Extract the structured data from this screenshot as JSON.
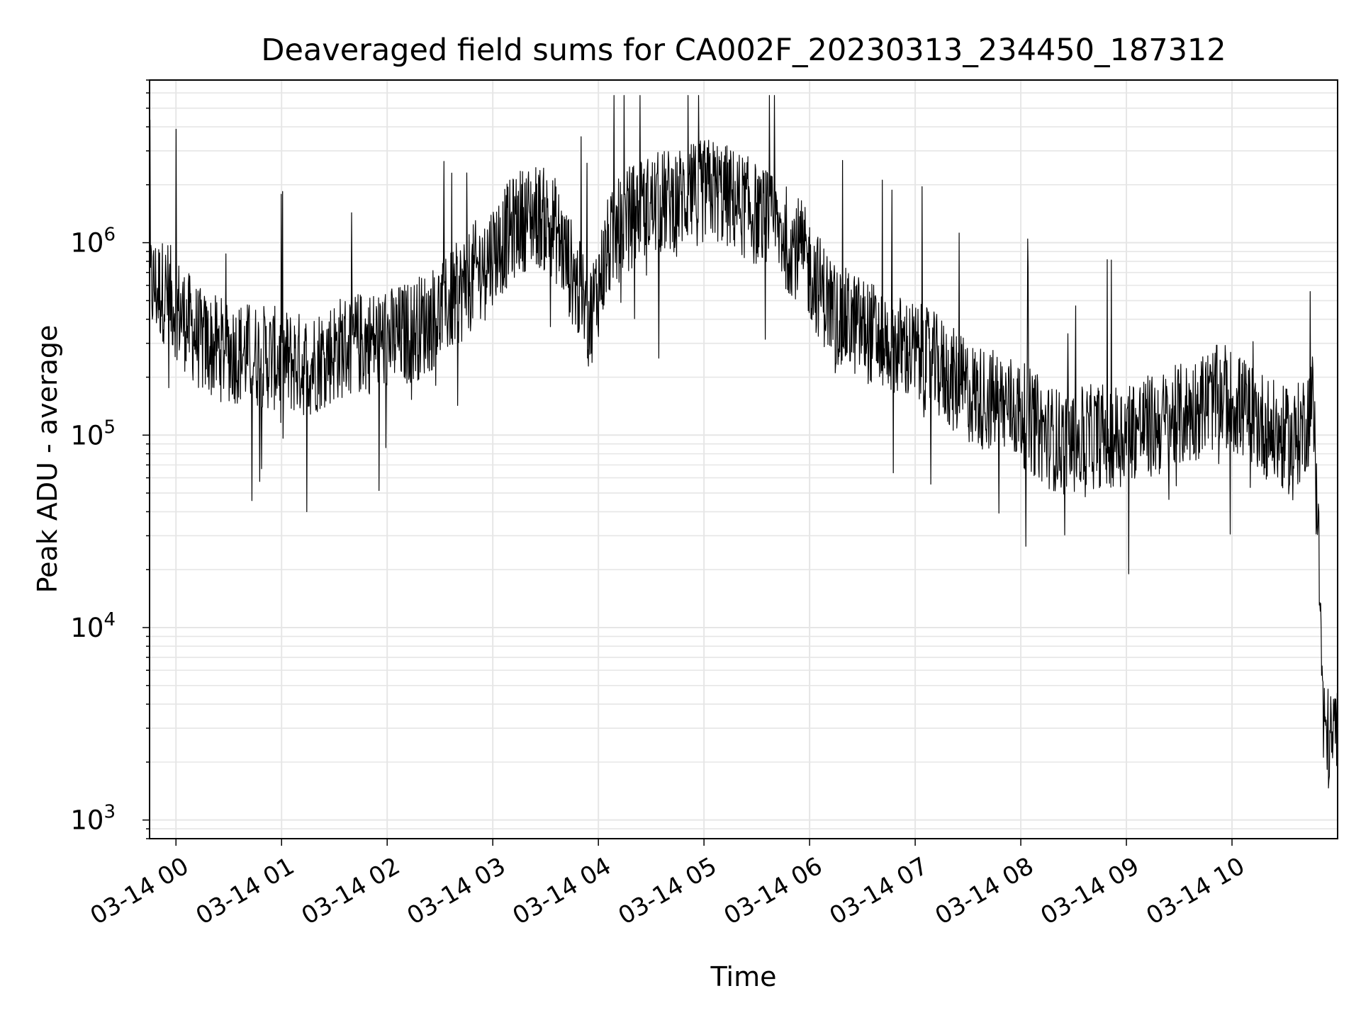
{
  "chart_data": {
    "type": "line",
    "title": "Deaveraged field sums for CA002F_20230313_234450_187312",
    "xlabel": "Time",
    "ylabel": "Peak ADU - average",
    "yscale": "log",
    "ylim": [
      800,
      7000000
    ],
    "xlim": [
      "2023-03-13 23:45",
      "2023-03-14 11:00"
    ],
    "x_ticks": [
      "2023-03-14 00:00",
      "2023-03-14 01:00",
      "2023-03-14 02:00",
      "2023-03-14 03:00",
      "2023-03-14 04:00",
      "2023-03-14 05:00",
      "2023-03-14 06:00",
      "2023-03-14 07:00",
      "2023-03-14 08:00",
      "2023-03-14 09:00",
      "2023-03-14 10:00"
    ],
    "x_tick_labels": [
      "03-14 00",
      "03-14 01",
      "03-14 02",
      "03-14 03",
      "03-14 04",
      "03-14 05",
      "03-14 06",
      "03-14 07",
      "03-14 08",
      "03-14 09",
      "03-14 10"
    ],
    "y_ticks": [
      1000,
      10000,
      100000,
      1000000
    ],
    "y_tick_labels": [
      {
        "base": "10",
        "exp": "3"
      },
      {
        "base": "10",
        "exp": "4"
      },
      {
        "base": "10",
        "exp": "5"
      },
      {
        "base": "10",
        "exp": "6"
      }
    ],
    "grid": true,
    "line_color": "#000000",
    "grid_color": "#e6e6e6",
    "series": [
      {
        "x": [
          "2023-03-13 23:45",
          "2023-03-13 23:55",
          "2023-03-14 00:05",
          "2023-03-14 00:15",
          "2023-03-14 00:25",
          "2023-03-14 00:35",
          "2023-03-14 00:45",
          "2023-03-14 00:55",
          "2023-03-14 01:05",
          "2023-03-14 01:15",
          "2023-03-14 01:25",
          "2023-03-14 01:35",
          "2023-03-14 01:45",
          "2023-03-14 01:55",
          "2023-03-14 02:05",
          "2023-03-14 02:15",
          "2023-03-14 02:25",
          "2023-03-14 02:35",
          "2023-03-14 02:45",
          "2023-03-14 02:55",
          "2023-03-14 03:05",
          "2023-03-14 03:15",
          "2023-03-14 03:25",
          "2023-03-14 03:35",
          "2023-03-14 03:45",
          "2023-03-14 03:55",
          "2023-03-14 04:05",
          "2023-03-14 04:15",
          "2023-03-14 04:25",
          "2023-03-14 04:35",
          "2023-03-14 04:45",
          "2023-03-14 04:55",
          "2023-03-14 05:05",
          "2023-03-14 05:15",
          "2023-03-14 05:25",
          "2023-03-14 05:35",
          "2023-03-14 05:45",
          "2023-03-14 05:55",
          "2023-03-14 06:05",
          "2023-03-14 06:15",
          "2023-03-14 06:25",
          "2023-03-14 06:35",
          "2023-03-14 06:45",
          "2023-03-14 06:55",
          "2023-03-14 07:05",
          "2023-03-14 07:15",
          "2023-03-14 07:25",
          "2023-03-14 07:35",
          "2023-03-14 07:45",
          "2023-03-14 07:55",
          "2023-03-14 08:05",
          "2023-03-14 08:15",
          "2023-03-14 08:25",
          "2023-03-14 08:35",
          "2023-03-14 08:45",
          "2023-03-14 08:55",
          "2023-03-14 09:05",
          "2023-03-14 09:15",
          "2023-03-14 09:25",
          "2023-03-14 09:35",
          "2023-03-14 09:45",
          "2023-03-14 09:55",
          "2023-03-14 10:05",
          "2023-03-14 10:15",
          "2023-03-14 10:25",
          "2023-03-14 10:35",
          "2023-03-14 10:42",
          "2023-03-14 10:47",
          "2023-03-14 10:52",
          "2023-03-14 10:56",
          "2023-03-14 11:00"
        ],
        "y": [
          600000,
          550000,
          400000,
          300000,
          280000,
          270000,
          260000,
          250000,
          240000,
          230000,
          260000,
          290000,
          300000,
          310000,
          320000,
          350000,
          400000,
          480000,
          600000,
          800000,
          1000000,
          1300000,
          1400000,
          1200000,
          700000,
          400000,
          900000,
          1300000,
          1500000,
          1600000,
          1700000,
          1800000,
          1900000,
          1700000,
          1500000,
          1300000,
          1100000,
          900000,
          600000,
          420000,
          380000,
          340000,
          300000,
          280000,
          250000,
          220000,
          180000,
          160000,
          150000,
          140000,
          120000,
          100000,
          90000,
          95000,
          100000,
          100000,
          110000,
          110000,
          120000,
          130000,
          150000,
          160000,
          140000,
          120000,
          100000,
          90000,
          120000,
          150000,
          3000,
          2500,
          3000
        ]
      }
    ]
  }
}
